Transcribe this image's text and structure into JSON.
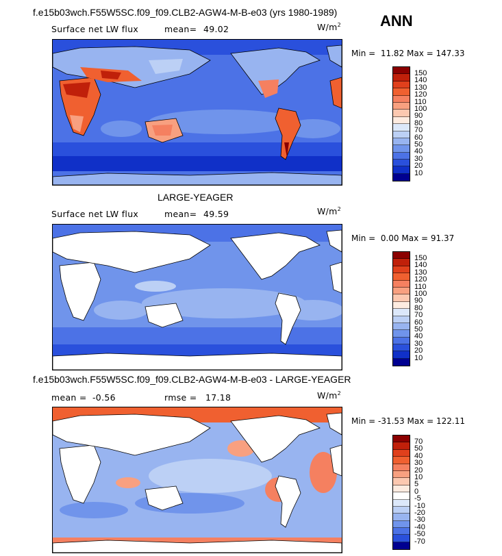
{
  "season": "ANN",
  "panels": [
    {
      "title": "f.e15b03wch.F55W5SC.f09_f09.CLB2-AGW4-M-B-e03 (yrs 1980-1989)",
      "variable": "Surface net LW flux",
      "stat1_label": "mean=",
      "stat1_value": "49.02",
      "stat2_label": "",
      "stat2_value": "",
      "units": "W/m",
      "units_sup": "2",
      "min_label": "Min =",
      "min_value": "11.82",
      "max_label": "Max =",
      "max_value": "147.33",
      "colorbar": {
        "labels": [
          "150",
          "140",
          "130",
          "120",
          "110",
          "100",
          "90",
          "80",
          "70",
          "60",
          "50",
          "40",
          "30",
          "20",
          "10"
        ],
        "colors": [
          "#8b0000",
          "#c0200a",
          "#e0401c",
          "#f06030",
          "#f58060",
          "#f8a080",
          "#fcc8b0",
          "#fdebe0",
          "#dce8fa",
          "#bcd0f5",
          "#98b4f0",
          "#7094eb",
          "#4c72e6",
          "#2a50dc",
          "#1030c8",
          "#000090"
        ]
      }
    },
    {
      "title": "LARGE-YEAGER",
      "variable": "Surface net LW flux",
      "stat1_label": "mean=",
      "stat1_value": "49.59",
      "stat2_label": "",
      "stat2_value": "",
      "units": "W/m",
      "units_sup": "2",
      "min_label": "Min =",
      "min_value": "0.00",
      "max_label": "Max =",
      "max_value": "91.37",
      "colorbar": {
        "labels": [
          "150",
          "140",
          "130",
          "120",
          "110",
          "100",
          "90",
          "80",
          "70",
          "60",
          "50",
          "40",
          "30",
          "20",
          "10"
        ],
        "colors": [
          "#8b0000",
          "#c0200a",
          "#e0401c",
          "#f06030",
          "#f58060",
          "#f8a080",
          "#fcc8b0",
          "#fdebe0",
          "#dce8fa",
          "#bcd0f5",
          "#98b4f0",
          "#7094eb",
          "#4c72e6",
          "#2a50dc",
          "#1030c8",
          "#000090"
        ]
      }
    },
    {
      "title": "f.e15b03wch.F55W5SC.f09_f09.CLB2-AGW4-M-B-e03 - LARGE-YEAGER",
      "variable": "",
      "stat1_label": "mean =",
      "stat1_value": "-0.56",
      "stat2_label": "rmse =",
      "stat2_value": "17.18",
      "units": "W/m",
      "units_sup": "2",
      "min_label": "Min =",
      "min_value": "-31.53",
      "max_label": "Max =",
      "max_value": "122.11",
      "colorbar": {
        "labels": [
          "70",
          "50",
          "40",
          "30",
          "20",
          "10",
          "5",
          "0",
          "-5",
          "-10",
          "-20",
          "-30",
          "-40",
          "-50",
          "-70"
        ],
        "colors": [
          "#8b0000",
          "#c0200a",
          "#e0401c",
          "#f06030",
          "#f58060",
          "#f8a080",
          "#fcc8b0",
          "#fdebe0",
          "#ffffff",
          "#dce8fa",
          "#bcd0f5",
          "#98b4f0",
          "#7094eb",
          "#4c72e6",
          "#2a50dc",
          "#000090"
        ]
      }
    }
  ]
}
